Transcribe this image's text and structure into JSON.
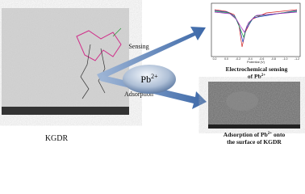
{
  "left_image": {
    "label": "KGDR"
  },
  "center": {
    "ion": "Pb",
    "ion_charge": "2+"
  },
  "arrows": {
    "upper": "Sensing",
    "lower": "Adsorption"
  },
  "plot": {
    "x_label": "Potential (V)",
    "x_ticks": [
      "0.2",
      "0.0",
      "-0.2",
      "-0.4",
      "-0.6",
      "-0.8",
      "-1.0",
      "-1.2"
    ]
  },
  "top_caption": {
    "line1": "Electrochemical sensing",
    "line2": "of Pb",
    "charge": "2+"
  },
  "bottom_caption": {
    "line1": "Adsorption of Pb",
    "charge": "2+",
    "line1_end": " onto",
    "line2": "the surface of KGDR"
  }
}
